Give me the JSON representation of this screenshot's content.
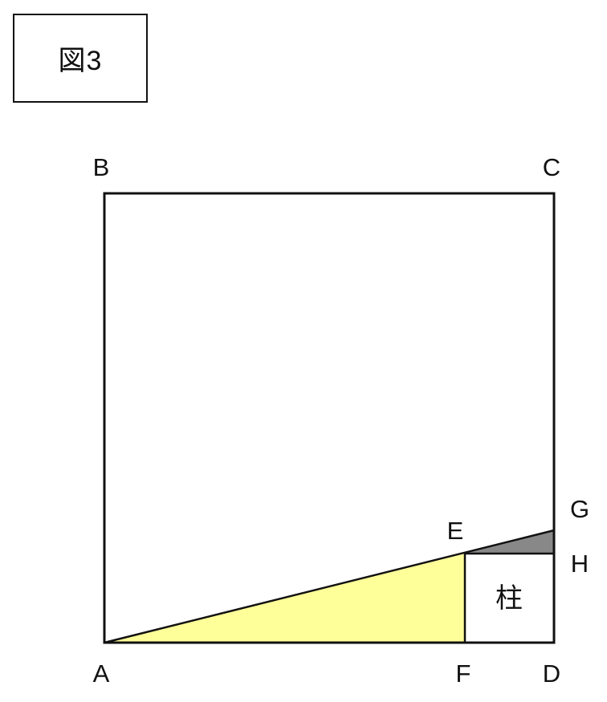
{
  "figure": {
    "label": "図3"
  },
  "points": {
    "A": "A",
    "B": "B",
    "C": "C",
    "D": "D",
    "E": "E",
    "F": "F",
    "G": "G",
    "H": "H"
  },
  "regions": {
    "pillar_label": "柱",
    "triangle_AFE_color": "#ffff99",
    "triangle_EHG_color": "#888888",
    "line_color": "#111111"
  }
}
